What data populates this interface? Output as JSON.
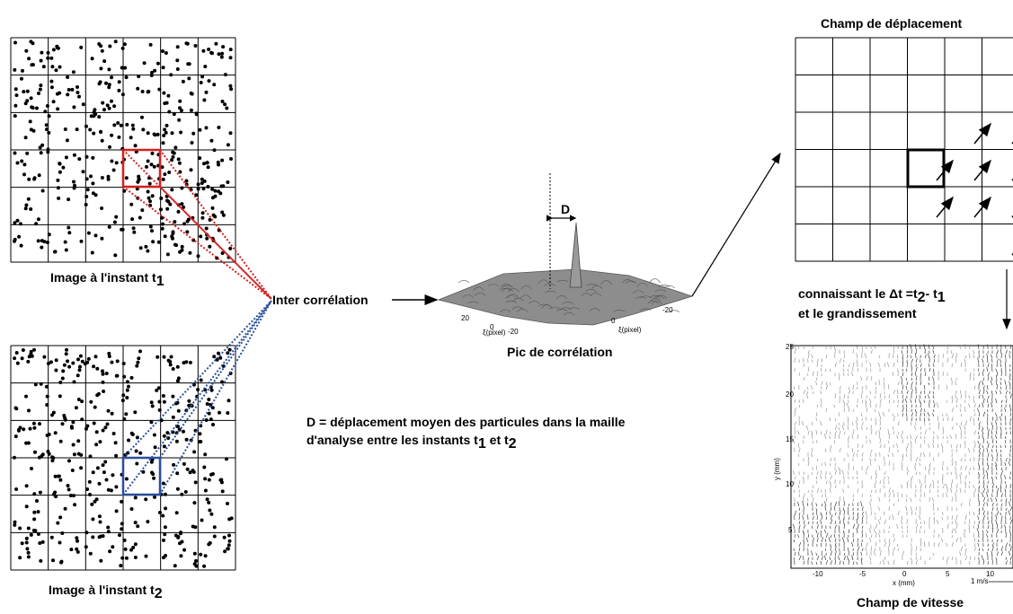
{
  "image_t1": {
    "caption_prefix": "Image à l'instant t",
    "caption_sub": "1"
  },
  "image_t2": {
    "caption_prefix": "Image à l'instant t",
    "caption_sub": "2"
  },
  "cross_correlation": {
    "label": "Inter corrélation"
  },
  "correlation_peak": {
    "caption": "Pic de corrélation",
    "d_label": "D",
    "axis_ticks_left": [
      "20",
      "0",
      "-20"
    ],
    "axis_ticks_right": [
      "0",
      "-20"
    ],
    "axis_label_left": "ξ(pixel)",
    "axis_label_right": "ξ(pixel)"
  },
  "definition": {
    "line1": "D = déplacement moyen des particules dans la maille",
    "line2_prefix": "d'analyse entre les instants t",
    "line2_sub1": "1",
    "line2_mid": " et t",
    "line2_sub2": "2"
  },
  "displacement_field": {
    "title": "Champ de déplacement"
  },
  "knowing": {
    "line1_prefix": "connaissant le ",
    "delta": "Δt",
    "line1_mid": " =t",
    "sub2": "2",
    "line1_mid2": "- t",
    "sub1": "1",
    "line2": "et le grandissement"
  },
  "velocity_field": {
    "caption": "Champ de vitesse",
    "x_label": "x (mm)",
    "y_label": "y (mm)",
    "x_ticks": [
      "-10",
      "-5",
      "0",
      "5",
      "10"
    ],
    "y_ticks": [
      "25",
      "20",
      "15",
      "10",
      "5"
    ],
    "scale_label": "1 m/s"
  },
  "colors": {
    "red": "#d42020",
    "blue": "#2a4f9c",
    "line": "#000000"
  }
}
